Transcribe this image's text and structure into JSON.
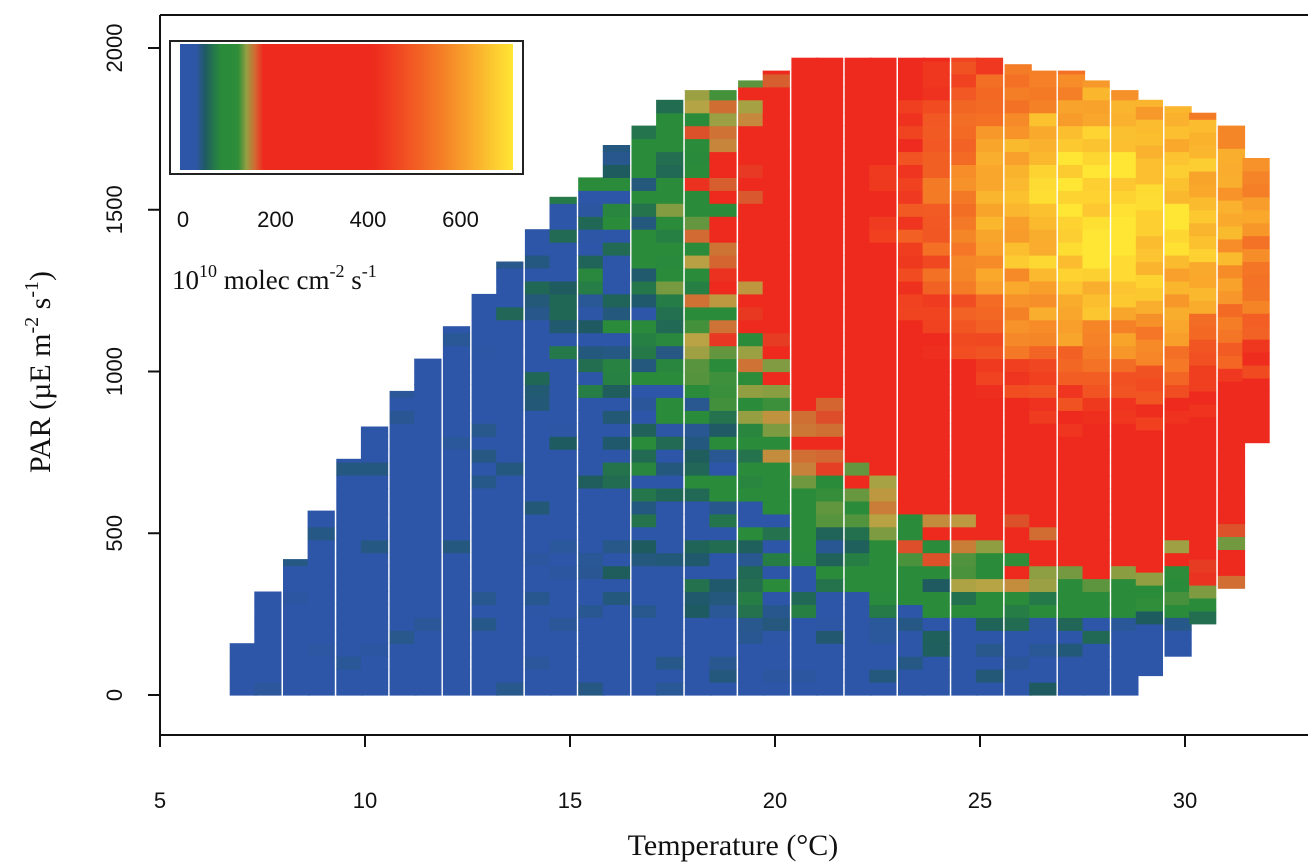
{
  "chart_data": {
    "type": "heatmap",
    "title": "",
    "xlabel": "Temperature (°C)",
    "ylabel": "PAR (µE m-2 s-1)",
    "ylabel_parts": {
      "base": "PAR (µE m",
      "exp1": "-2",
      "mid": " s",
      "exp2": "-1",
      "end": ")"
    },
    "xlim": [
      5,
      33
    ],
    "ylim": [
      -120,
      2100
    ],
    "x_ticks": [
      5,
      10,
      15,
      20,
      25,
      30
    ],
    "y_ticks": [
      0,
      500,
      1000,
      1500,
      2000
    ],
    "x_tick_labels": [
      "5",
      "10",
      "15",
      "20",
      "25",
      "30"
    ],
    "y_tick_labels": [
      "0",
      "500",
      "1000",
      "1500",
      "2000"
    ],
    "grid": false,
    "cell_width_c": 0.65,
    "cell_height_par": 40,
    "envelope": [
      [
        6.7,
        0,
        160
      ],
      [
        7.3,
        0,
        320
      ],
      [
        8.0,
        0,
        420
      ],
      [
        8.6,
        0,
        570
      ],
      [
        9.3,
        0,
        730
      ],
      [
        9.9,
        0,
        830
      ],
      [
        10.6,
        0,
        940
      ],
      [
        11.2,
        0,
        1040
      ],
      [
        11.9,
        0,
        1140
      ],
      [
        12.6,
        0,
        1240
      ],
      [
        13.2,
        0,
        1340
      ],
      [
        13.9,
        0,
        1440
      ],
      [
        14.5,
        0,
        1540
      ],
      [
        15.2,
        0,
        1600
      ],
      [
        15.8,
        0,
        1700
      ],
      [
        16.5,
        0,
        1760
      ],
      [
        17.1,
        0,
        1840
      ],
      [
        17.8,
        0,
        1870
      ],
      [
        18.4,
        0,
        1870
      ],
      [
        19.1,
        0,
        1900
      ],
      [
        19.7,
        0,
        1930
      ],
      [
        20.4,
        0,
        1970
      ],
      [
        21.0,
        0,
        1970
      ],
      [
        21.7,
        0,
        1970
      ],
      [
        22.3,
        0,
        1970
      ],
      [
        23.0,
        0,
        1970
      ],
      [
        23.6,
        0,
        1970
      ],
      [
        24.3,
        0,
        1970
      ],
      [
        24.9,
        0,
        1970
      ],
      [
        25.6,
        0,
        1950
      ],
      [
        26.2,
        0,
        1930
      ],
      [
        26.9,
        0,
        1930
      ],
      [
        27.5,
        0,
        1900
      ],
      [
        28.2,
        0,
        1870
      ],
      [
        28.8,
        60,
        1840
      ],
      [
        29.5,
        120,
        1820
      ],
      [
        30.1,
        220,
        1800
      ],
      [
        30.8,
        330,
        1760
      ],
      [
        31.4,
        780,
        1660
      ]
    ],
    "value_model": {
      "peak_temperature_c": 28.3,
      "peak_par": 1500,
      "description_only_for_script": false
    },
    "colorbar": {
      "label": "10",
      "label_exp": "10",
      "label_rest": " molec cm",
      "label_exp2": "-2",
      "label_rest2": " s",
      "label_exp3": "-1",
      "ticks": [
        0,
        200,
        400,
        600
      ],
      "tick_labels": [
        "0",
        "200",
        "400",
        "600"
      ],
      "range": [
        0,
        720
      ],
      "placement": "top-left"
    },
    "colors": {
      "low": "#2e56a8",
      "teal": "#1e5a60",
      "green": "#2a8c3a",
      "olive": "#b8a545",
      "red": "#ee2a1e",
      "orange": "#f47a26",
      "yellow": "#ffe634"
    }
  }
}
